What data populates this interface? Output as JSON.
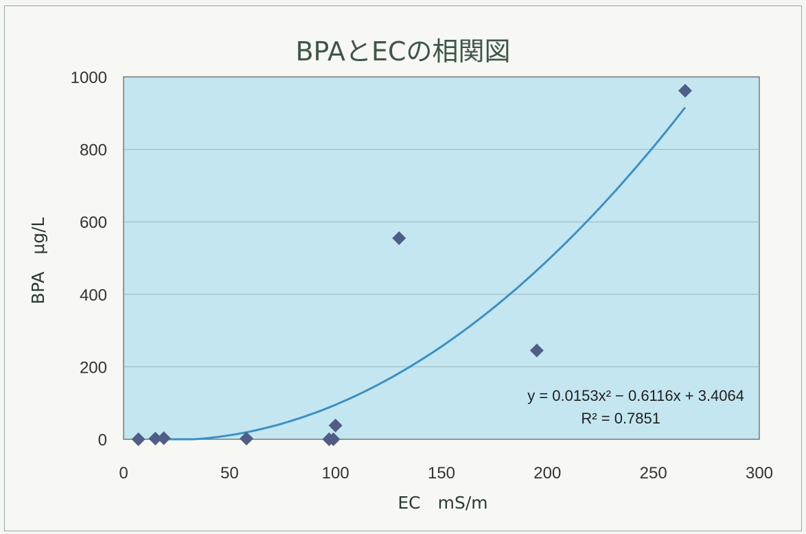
{
  "chart_data": {
    "type": "scatter",
    "title": "BPAとECの相関図",
    "xlabel": "EC　mS/m",
    "ylabel": "BPA　μg/L",
    "xlim": [
      0,
      300
    ],
    "ylim": [
      0,
      1000
    ],
    "x_ticks": [
      0,
      50,
      100,
      150,
      200,
      250,
      300
    ],
    "y_ticks": [
      0,
      200,
      400,
      600,
      800,
      1000
    ],
    "grid": true,
    "points": [
      {
        "x": 7,
        "y": 0
      },
      {
        "x": 15,
        "y": 2
      },
      {
        "x": 19,
        "y": 3
      },
      {
        "x": 58,
        "y": 2
      },
      {
        "x": 97,
        "y": 0
      },
      {
        "x": 99,
        "y": 0
      },
      {
        "x": 100,
        "y": 38
      },
      {
        "x": 130,
        "y": 555
      },
      {
        "x": 195,
        "y": 245
      },
      {
        "x": 265,
        "y": 962
      }
    ],
    "trendline": {
      "type": "polynomial",
      "coefficients": [
        0.0153,
        -0.6116,
        3.4064
      ],
      "x_range": [
        20,
        265
      ],
      "equation": "y = 0.0153x² − 0.6116x + 3.4064",
      "r_squared": "R² = 0.7851"
    },
    "colors": {
      "plot_background": "#c3e6f0",
      "marker": "#4f5d87",
      "trendline": "#3a8fc6",
      "title": "#3f5747"
    }
  }
}
